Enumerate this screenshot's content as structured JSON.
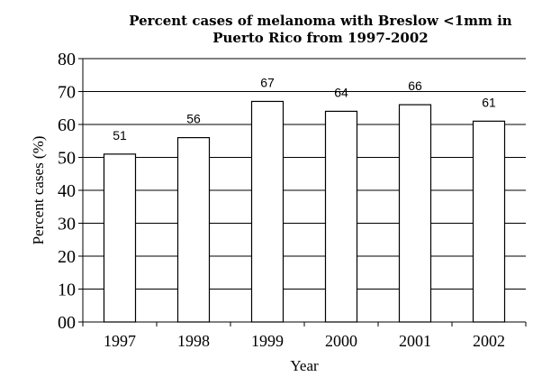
{
  "chart_data": {
    "type": "bar",
    "title_lines": [
      "Percent cases of melanoma with Breslow <1mm in",
      "Puerto Rico from 1997-2002"
    ],
    "xlabel": "Year",
    "ylabel": "Percent cases (%)",
    "categories": [
      "1997",
      "1998",
      "1999",
      "2000",
      "2001",
      "2002"
    ],
    "values": [
      51,
      56,
      67,
      64,
      66,
      61
    ],
    "data_labels": [
      "51",
      "56",
      "67",
      "64",
      "66",
      "61"
    ],
    "ylim": [
      0,
      80
    ],
    "yticks": [
      0,
      10,
      20,
      30,
      40,
      50,
      60,
      70,
      80
    ],
    "ytick_labels": [
      "00",
      "10",
      "20",
      "30",
      "40",
      "50",
      "60",
      "70",
      "80"
    ],
    "grid": "horizontal",
    "legend": "none",
    "colors": {
      "bar_fill": "#ffffff",
      "bar_stroke": "#000000",
      "grid": "#000000"
    }
  }
}
